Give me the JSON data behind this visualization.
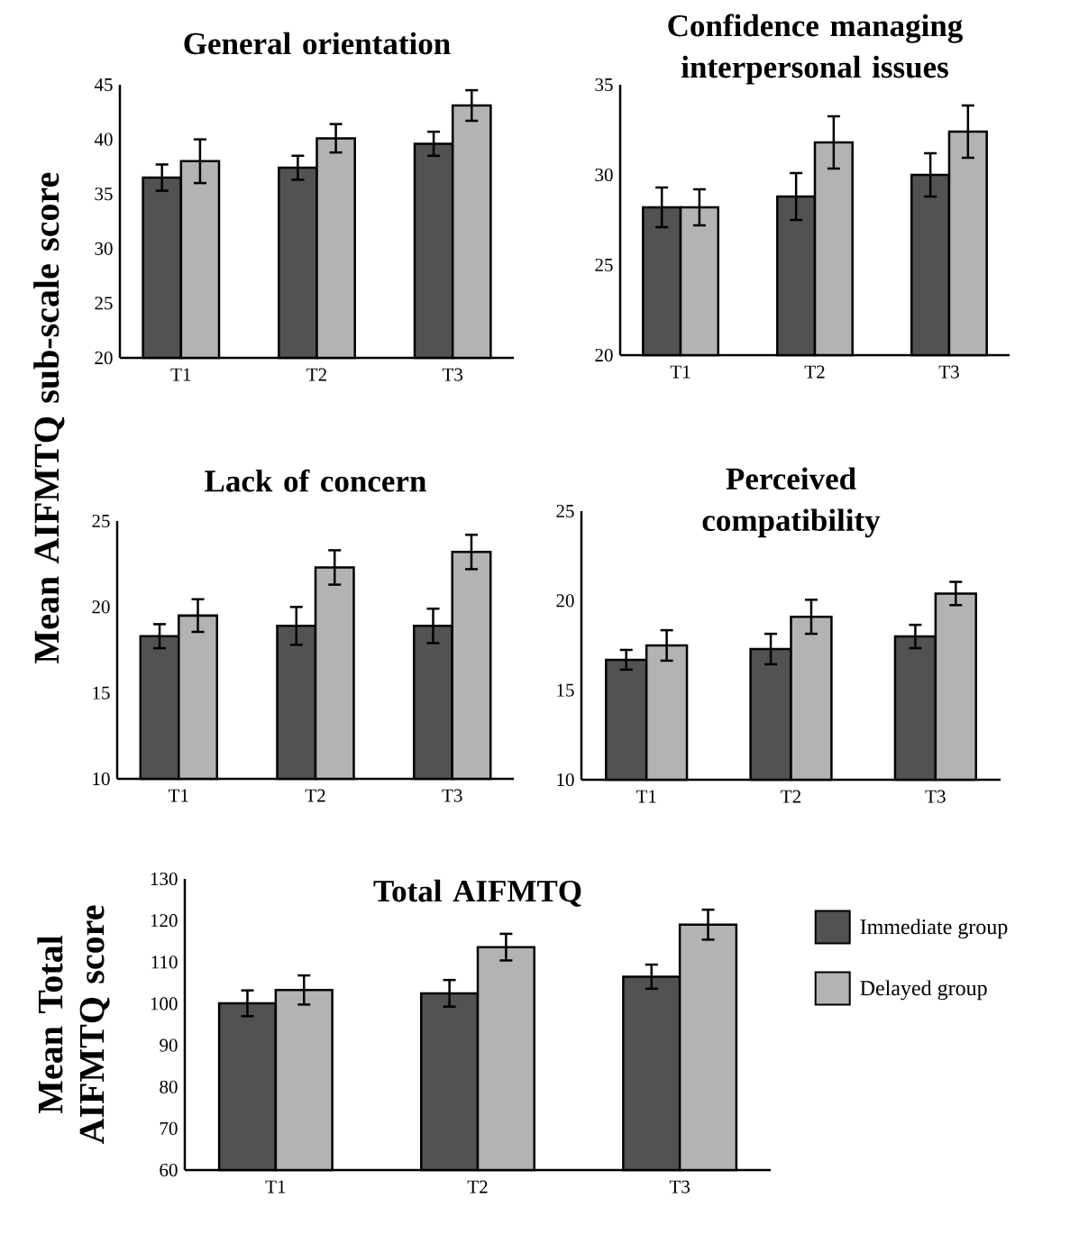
{
  "chart_data": [
    {
      "type": "bar",
      "title": "General orientation",
      "ylabel": "Mean AIFMTQ sub-scale score",
      "categories": [
        "T1",
        "T2",
        "T3"
      ],
      "ylim": [
        20,
        45
      ],
      "yticks": [
        20,
        25,
        30,
        35,
        40,
        45
      ],
      "series": [
        {
          "color": "#525252",
          "values": [
            36.5,
            37.4,
            39.6
          ],
          "errors": [
            1.2,
            1.1,
            1.1
          ]
        },
        {
          "color": "#b3b3b3",
          "values": [
            38.0,
            40.1,
            43.1
          ],
          "errors": [
            2.0,
            1.3,
            1.4
          ]
        }
      ]
    },
    {
      "type": "bar",
      "title": "Confidence managing interpersonal issues",
      "categories": [
        "T1",
        "T2",
        "T3"
      ],
      "ylim": [
        20,
        35
      ],
      "yticks": [
        20,
        25,
        30,
        35
      ],
      "series": [
        {
          "color": "#525252",
          "values": [
            28.2,
            28.8,
            30.0
          ],
          "errors": [
            1.1,
            1.3,
            1.2
          ]
        },
        {
          "color": "#b3b3b3",
          "values": [
            28.2,
            31.8,
            32.4
          ],
          "errors": [
            1.0,
            1.45,
            1.45
          ]
        }
      ]
    },
    {
      "type": "bar",
      "title": "Lack of concern",
      "categories": [
        "T1",
        "T2",
        "T3"
      ],
      "ylim": [
        10,
        25
      ],
      "yticks": [
        10,
        15,
        20,
        25
      ],
      "series": [
        {
          "color": "#525252",
          "values": [
            18.3,
            18.9,
            18.9
          ],
          "errors": [
            0.7,
            1.1,
            1.0
          ]
        },
        {
          "color": "#b3b3b3",
          "values": [
            19.5,
            22.3,
            23.2
          ],
          "errors": [
            0.95,
            1.0,
            1.0
          ]
        }
      ]
    },
    {
      "type": "bar",
      "title": "Perceived compatibility",
      "categories": [
        "T1",
        "T2",
        "T3"
      ],
      "ylim": [
        10,
        25
      ],
      "yticks": [
        10,
        15,
        20,
        25
      ],
      "series": [
        {
          "color": "#525252",
          "values": [
            16.7,
            17.3,
            18.0
          ],
          "errors": [
            0.55,
            0.85,
            0.65
          ]
        },
        {
          "color": "#b3b3b3",
          "values": [
            17.5,
            19.1,
            20.4
          ],
          "errors": [
            0.85,
            0.95,
            0.65
          ]
        }
      ]
    },
    {
      "type": "bar",
      "title": "Total AIFMTQ",
      "ylabel": "Mean Total AIFMTQ score",
      "categories": [
        "T1",
        "T2",
        "T3"
      ],
      "ylim": [
        60,
        130
      ],
      "yticks": [
        60,
        70,
        80,
        90,
        100,
        110,
        120,
        130
      ],
      "legend": "right",
      "series": [
        {
          "name": "Immediate group",
          "color": "#525252",
          "values": [
            100.1,
            102.5,
            106.5
          ],
          "errors": [
            3.1,
            3.2,
            2.9
          ]
        },
        {
          "name": "Delayed group",
          "color": "#b3b3b3",
          "values": [
            103.3,
            113.6,
            119.0
          ],
          "errors": [
            3.5,
            3.2,
            3.6
          ]
        }
      ]
    }
  ]
}
